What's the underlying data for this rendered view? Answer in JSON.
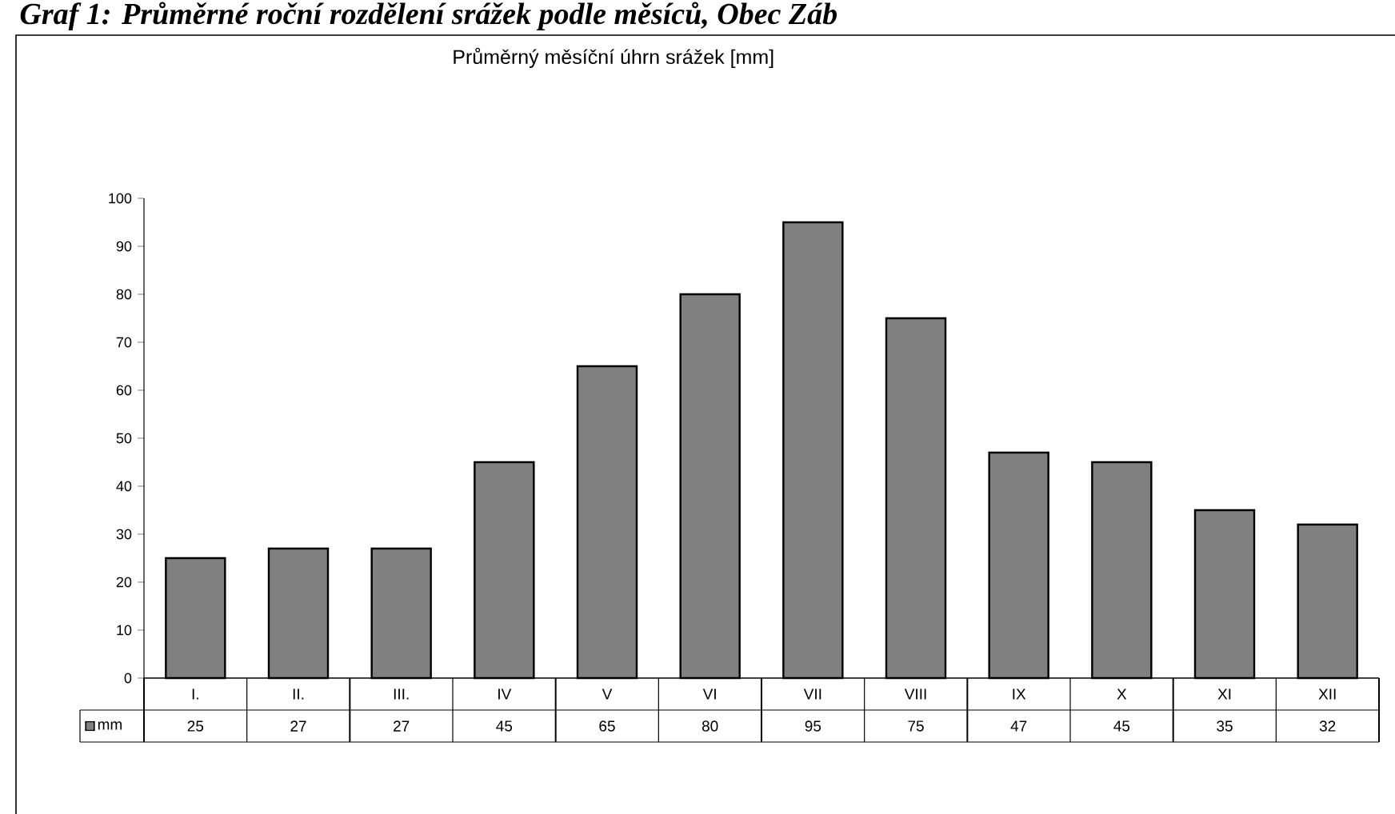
{
  "chart_data": {
    "type": "bar",
    "title": "Průměrný měsíční úhrn srážek [mm]",
    "annotations": [
      "Graf 1: Průměrné roční rozdělení srážek podle měsíců, Obec Záb"
    ],
    "categories": [
      "I.",
      "II.",
      "III.",
      "IV",
      "V",
      "VI",
      "VII",
      "VIII",
      "IX",
      "X",
      "XI",
      "XII"
    ],
    "series": [
      {
        "name": "mm",
        "color": "#808080",
        "values": [
          25,
          27,
          27,
          45,
          65,
          80,
          95,
          75,
          47,
          45,
          35,
          32
        ]
      }
    ],
    "ylim": [
      0,
      100
    ],
    "yticks": [
      0,
      10,
      20,
      30,
      40,
      50,
      60,
      70,
      80,
      90,
      100
    ],
    "data_labels": true,
    "legend": "bottom"
  }
}
